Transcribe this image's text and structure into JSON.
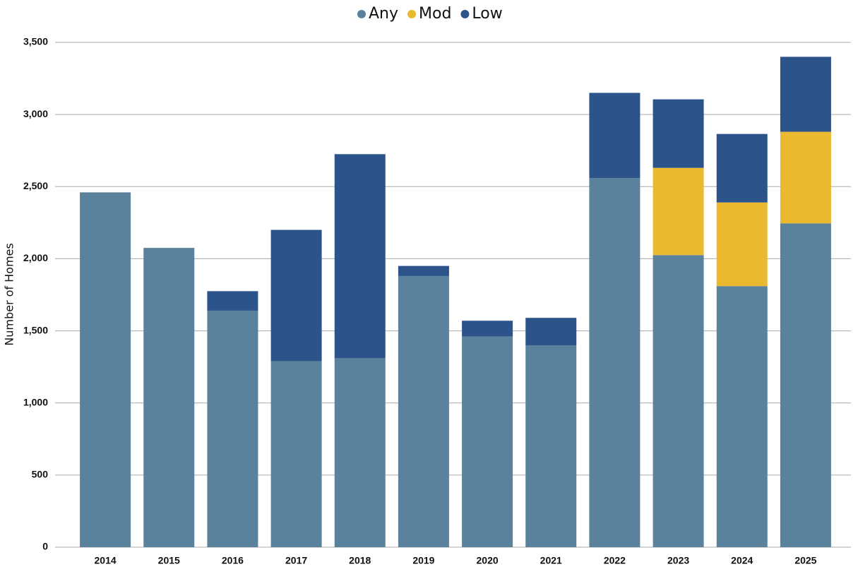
{
  "chart_data": {
    "type": "stacked_bar",
    "categories": [
      "2014",
      "2015",
      "2016",
      "2017",
      "2018",
      "2019",
      "2020",
      "2021",
      "2022",
      "2023",
      "2024",
      "2025"
    ],
    "series": [
      {
        "name": "Any",
        "color": "#5b829c",
        "values": [
          2460,
          2075,
          1640,
          1290,
          1310,
          1880,
          1460,
          1400,
          2560,
          2025,
          1810,
          2245
        ]
      },
      {
        "name": "Mod",
        "color": "#ebb92f",
        "values": [
          0,
          0,
          0,
          0,
          0,
          0,
          0,
          0,
          0,
          605,
          580,
          635
        ]
      },
      {
        "name": "Low",
        "color": "#2d548a",
        "values": [
          0,
          0,
          135,
          910,
          1415,
          70,
          110,
          190,
          590,
          475,
          475,
          520
        ]
      }
    ],
    "ylabel": "Number of Homes",
    "ylim": [
      0,
      3500
    ],
    "yticks": [
      0,
      500,
      {
        "value": 1000,
        "label": "1,000"
      },
      {
        "value": 1500,
        "label": "1,500"
      },
      {
        "value": 2000,
        "label": "2,000"
      },
      {
        "value": 2500,
        "label": "2,500"
      },
      {
        "value": 3000,
        "label": "3,000"
      },
      {
        "value": 3500,
        "label": "3,500"
      }
    ],
    "grid": true,
    "legend": "top"
  }
}
